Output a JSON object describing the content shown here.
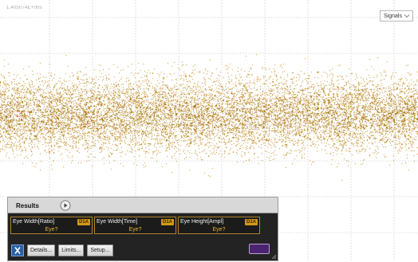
{
  "scope": {
    "timestamp": "1.405074E+00s",
    "signals_dropdown": "Signals",
    "eye_color": "#c48c12"
  },
  "results": {
    "title": "Results",
    "measurements": [
      {
        "name": "Eye Width[Ratio]",
        "source": "D1A",
        "value": "Eye?"
      },
      {
        "name": "Eye Width[Time]",
        "source": "D1A",
        "value": "Eye?"
      },
      {
        "name": "Eye Height[Ampl]",
        "source": "D1A",
        "value": "Eye?"
      }
    ],
    "buttons": {
      "details": "Details...",
      "limits": "Limits...",
      "setup": "Setup..."
    },
    "swatch_color": "#4a2371"
  }
}
